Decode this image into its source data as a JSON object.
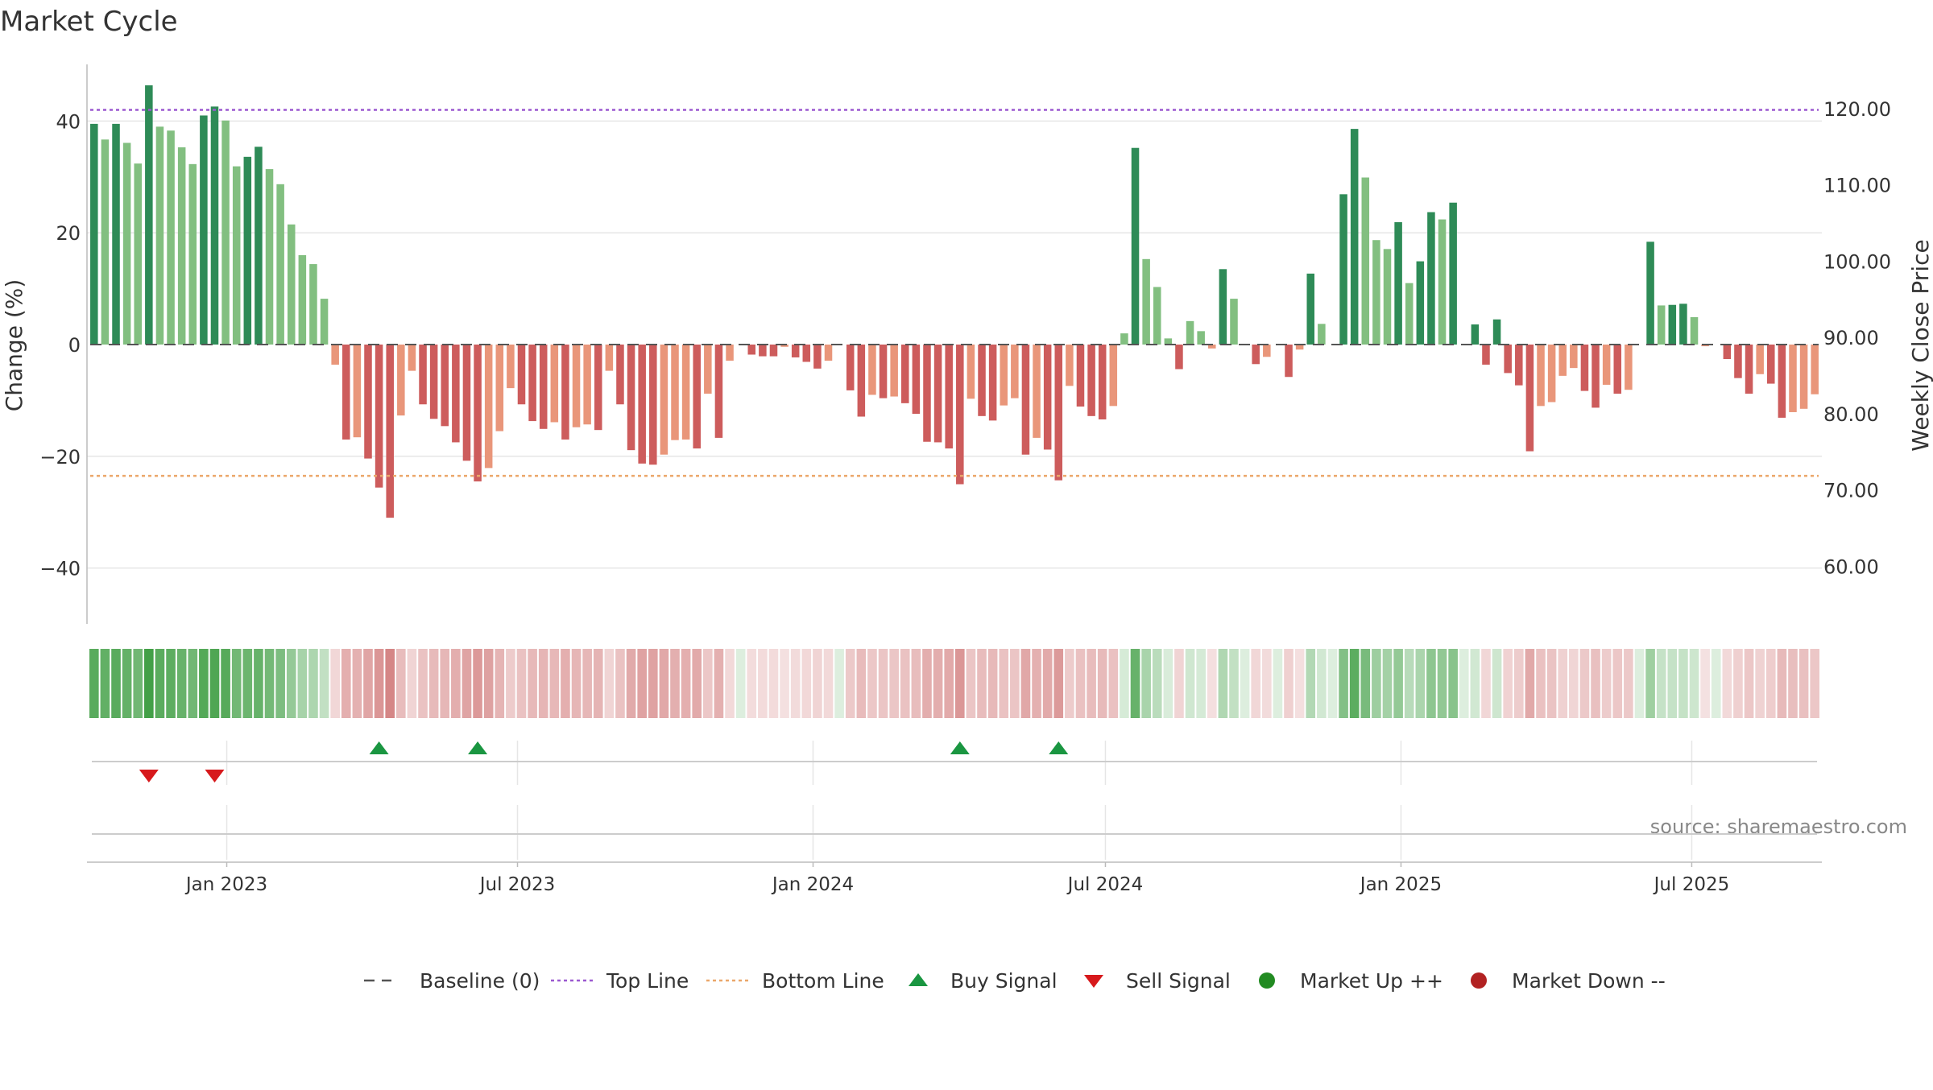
{
  "chart_data": {
    "type": "bar",
    "title": "Market Cycle",
    "ylabel": "Change (%)",
    "y2label": "Weekly Close Price",
    "source": "source: sharemaestro.com",
    "ylim": [
      -50,
      50
    ],
    "y2lim": [
      52.43,
      125.78
    ],
    "yticks": [
      -40,
      -20,
      0,
      20,
      40
    ],
    "yticklabels": [
      "−40",
      "−20",
      "0",
      "20",
      "40"
    ],
    "y2ticks": [
      60,
      70,
      80,
      90,
      100,
      110,
      120
    ],
    "y2ticklabels": [
      "60.00",
      "70.00",
      "80.00",
      "90.00",
      "100.00",
      "110.00",
      "120.00"
    ],
    "xaxis": {
      "start": "2022-10-07",
      "end": "2025-09-19",
      "ticks": [
        {
          "date": "2023-01-01",
          "label": "Jan 2023"
        },
        {
          "date": "2023-07-01",
          "label": "Jul 2023"
        },
        {
          "date": "2024-01-01",
          "label": "Jan 2024"
        },
        {
          "date": "2024-07-01",
          "label": "Jul 2024"
        },
        {
          "date": "2025-01-01",
          "label": "Jan 2025"
        },
        {
          "date": "2025-07-01",
          "label": "Jul 2025"
        }
      ]
    },
    "top_line": 42,
    "bottom_line": -23.5,
    "values": [
      39.5,
      36.7,
      39.5,
      36.1,
      32.4,
      46.4,
      39.0,
      38.3,
      35.3,
      32.3,
      41.0,
      42.6,
      40.1,
      31.9,
      33.6,
      35.4,
      31.4,
      28.7,
      21.5,
      16.0,
      14.4,
      8.2,
      -3.6,
      -17.0,
      -16.6,
      -20.4,
      -25.6,
      -31.0,
      -12.7,
      -4.7,
      -10.7,
      -13.3,
      -14.6,
      -17.5,
      -20.8,
      -24.5,
      -22.1,
      -15.5,
      -7.8,
      -10.7,
      -13.7,
      -15.1,
      -13.9,
      -17.0,
      -14.8,
      -14.3,
      -15.3,
      -4.7,
      -10.7,
      -18.9,
      -21.3,
      -21.5,
      -19.7,
      -17.1,
      -17.0,
      -18.6,
      -8.8,
      -16.7,
      -2.9,
      0,
      -1.8,
      -2.1,
      -2.1,
      -0.4,
      -2.3,
      -3.1,
      -4.3,
      -2.9,
      0,
      -8.2,
      -12.9,
      -9.0,
      -9.6,
      -9.3,
      -10.5,
      -12.4,
      -17.4,
      -17.5,
      -18.6,
      -25.0,
      -9.7,
      -12.8,
      -13.6,
      -10.9,
      -9.6,
      -19.7,
      -16.7,
      -18.8,
      -24.3,
      -7.4,
      -11.1,
      -12.8,
      -13.4,
      -11.0,
      2.0,
      35.2,
      15.3,
      10.3,
      1.1,
      -4.4,
      4.2,
      2.4,
      -0.7,
      13.5,
      8.2,
      0,
      -3.5,
      -2.2,
      0,
      -5.8,
      -0.9,
      12.7,
      3.7,
      0,
      26.9,
      38.6,
      29.9,
      18.7,
      17.1,
      21.9,
      11.0,
      14.9,
      23.7,
      22.4,
      25.4,
      0,
      3.6,
      -3.6,
      4.5,
      -5.1,
      -7.3,
      -19.1,
      -11.0,
      -10.3,
      -5.6,
      -4.2,
      -8.3,
      -11.3,
      -7.2,
      -8.8,
      -8.1,
      0,
      18.4,
      7.0,
      7.1,
      7.3,
      4.9,
      -0.3,
      0,
      -2.6,
      -6.0,
      -8.8,
      -5.3,
      -7.0,
      -13.1,
      -12.1,
      -11.5,
      -8.9
    ],
    "bar_colors": {
      "up_strong": "#2e8b57",
      "up_light": "#82bf80",
      "down_strong": "#cd5c5c",
      "down_light": "#e9967a"
    },
    "heat_colors": {
      "up": [
        67,
        160,
        71
      ],
      "down": [
        198,
        90,
        90
      ]
    },
    "buy_signal_weeks": [
      26,
      35,
      79,
      88
    ],
    "sell_signal_weeks": [
      5,
      11
    ],
    "signal_colors": {
      "buy": "#1a9641",
      "sell": "#d7191c"
    },
    "line_colors": {
      "top": "#9b59d0",
      "bottom": "#eba76b",
      "baseline": "#555555",
      "grid": "#e6e6e6"
    },
    "legend": [
      {
        "label": "Baseline (0)",
        "kind": "dash"
      },
      {
        "label": "Top Line",
        "kind": "dot-purple"
      },
      {
        "label": "Bottom Line",
        "kind": "dot-orange"
      },
      {
        "label": "Buy Signal",
        "kind": "tri-up"
      },
      {
        "label": "Sell Signal",
        "kind": "tri-down"
      },
      {
        "label": "Market Up ++",
        "kind": "circle-green"
      },
      {
        "label": "Market Down --",
        "kind": "circle-red"
      }
    ],
    "legend_colors": {
      "circle_green": "#228b22",
      "circle_red": "#b22222"
    },
    "legend_placement": "bottom-center",
    "grid": true
  }
}
